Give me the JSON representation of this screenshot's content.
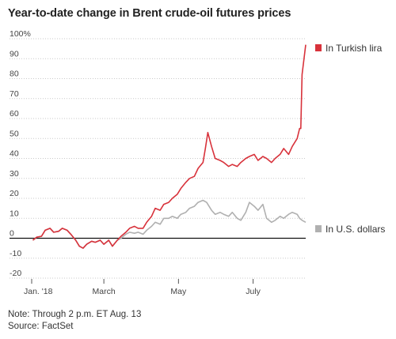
{
  "chart_data": {
    "type": "line",
    "title": "Year-to-date change in Brent crude-oil futures prices",
    "ylim": [
      -20,
      100
    ],
    "yticks": [
      {
        "value": 100,
        "label": "100%"
      },
      {
        "value": 90,
        "label": "90"
      },
      {
        "value": 80,
        "label": "80"
      },
      {
        "value": 70,
        "label": "70"
      },
      {
        "value": 60,
        "label": "60"
      },
      {
        "value": 50,
        "label": "50"
      },
      {
        "value": 40,
        "label": "40"
      },
      {
        "value": 30,
        "label": "30"
      },
      {
        "value": 20,
        "label": "20"
      },
      {
        "value": 10,
        "label": "10"
      },
      {
        "value": 0,
        "label": "0"
      },
      {
        "value": -10,
        "label": "-10"
      },
      {
        "value": -20,
        "label": "-20"
      }
    ],
    "xlim": [
      "2018-01-01",
      "2018-08-13"
    ],
    "xticks": [
      {
        "date": "2018-01-01",
        "label": "Jan. '18"
      },
      {
        "date": "2018-03-01",
        "label": "March"
      },
      {
        "date": "2018-05-01",
        "label": "May"
      },
      {
        "date": "2018-07-01",
        "label": "July"
      }
    ],
    "legend_placement": "right, beside line ends",
    "series": [
      {
        "name": "In Turkish lira",
        "color": "#d8323b",
        "points": [
          [
            "2018-01-02",
            -1
          ],
          [
            "2018-01-05",
            0.5
          ],
          [
            "2018-01-09",
            1
          ],
          [
            "2018-01-12",
            4
          ],
          [
            "2018-01-16",
            5
          ],
          [
            "2018-01-19",
            3
          ],
          [
            "2018-01-23",
            3.5
          ],
          [
            "2018-01-26",
            5
          ],
          [
            "2018-01-30",
            4
          ],
          [
            "2018-02-02",
            2
          ],
          [
            "2018-02-06",
            -1
          ],
          [
            "2018-02-09",
            -4
          ],
          [
            "2018-02-12",
            -5
          ],
          [
            "2018-02-15",
            -3
          ],
          [
            "2018-02-19",
            -1.5
          ],
          [
            "2018-02-22",
            -2
          ],
          [
            "2018-02-26",
            -1
          ],
          [
            "2018-03-01",
            -3
          ],
          [
            "2018-03-05",
            -1
          ],
          [
            "2018-03-08",
            -4
          ],
          [
            "2018-03-12",
            -1
          ],
          [
            "2018-03-15",
            1
          ],
          [
            "2018-03-19",
            3
          ],
          [
            "2018-03-22",
            5
          ],
          [
            "2018-03-26",
            6
          ],
          [
            "2018-03-29",
            5
          ],
          [
            "2018-04-02",
            5
          ],
          [
            "2018-04-05",
            8
          ],
          [
            "2018-04-09",
            11
          ],
          [
            "2018-04-12",
            15
          ],
          [
            "2018-04-16",
            14
          ],
          [
            "2018-04-19",
            17
          ],
          [
            "2018-04-23",
            18
          ],
          [
            "2018-04-26",
            20
          ],
          [
            "2018-04-30",
            22
          ],
          [
            "2018-05-03",
            25
          ],
          [
            "2018-05-07",
            28
          ],
          [
            "2018-05-10",
            30
          ],
          [
            "2018-05-14",
            31
          ],
          [
            "2018-05-17",
            35
          ],
          [
            "2018-05-21",
            38
          ],
          [
            "2018-05-23",
            45
          ],
          [
            "2018-05-25",
            53
          ],
          [
            "2018-05-28",
            46
          ],
          [
            "2018-05-31",
            40
          ],
          [
            "2018-06-04",
            39
          ],
          [
            "2018-06-07",
            38
          ],
          [
            "2018-06-11",
            36
          ],
          [
            "2018-06-14",
            37
          ],
          [
            "2018-06-18",
            36
          ],
          [
            "2018-06-21",
            38
          ],
          [
            "2018-06-25",
            40
          ],
          [
            "2018-06-28",
            41
          ],
          [
            "2018-07-02",
            42
          ],
          [
            "2018-07-05",
            39
          ],
          [
            "2018-07-09",
            41
          ],
          [
            "2018-07-12",
            40
          ],
          [
            "2018-07-16",
            38
          ],
          [
            "2018-07-19",
            40
          ],
          [
            "2018-07-23",
            42
          ],
          [
            "2018-07-26",
            45
          ],
          [
            "2018-07-30",
            42
          ],
          [
            "2018-08-02",
            46
          ],
          [
            "2018-08-06",
            50
          ],
          [
            "2018-08-08",
            55
          ],
          [
            "2018-08-09",
            55
          ],
          [
            "2018-08-10",
            82
          ],
          [
            "2018-08-13",
            97
          ]
        ]
      },
      {
        "name": "In U.S. dollars",
        "color": "#b0b0b0",
        "points": [
          [
            "2018-01-02",
            -1
          ],
          [
            "2018-01-05",
            0.5
          ],
          [
            "2018-01-09",
            1
          ],
          [
            "2018-01-12",
            4
          ],
          [
            "2018-01-16",
            5
          ],
          [
            "2018-01-19",
            3
          ],
          [
            "2018-01-23",
            3.5
          ],
          [
            "2018-01-26",
            5
          ],
          [
            "2018-01-30",
            4
          ],
          [
            "2018-02-02",
            2
          ],
          [
            "2018-02-06",
            -1
          ],
          [
            "2018-02-09",
            -4
          ],
          [
            "2018-02-12",
            -5
          ],
          [
            "2018-02-15",
            -3
          ],
          [
            "2018-02-19",
            -1.5
          ],
          [
            "2018-02-22",
            -2
          ],
          [
            "2018-02-26",
            -1
          ],
          [
            "2018-03-01",
            -3
          ],
          [
            "2018-03-05",
            -1
          ],
          [
            "2018-03-08",
            -4
          ],
          [
            "2018-03-12",
            -1
          ],
          [
            "2018-03-15",
            0
          ],
          [
            "2018-03-19",
            2
          ],
          [
            "2018-03-22",
            3
          ],
          [
            "2018-03-26",
            2.5
          ],
          [
            "2018-03-29",
            3
          ],
          [
            "2018-04-02",
            2
          ],
          [
            "2018-04-05",
            4
          ],
          [
            "2018-04-09",
            6
          ],
          [
            "2018-04-12",
            8
          ],
          [
            "2018-04-16",
            7
          ],
          [
            "2018-04-19",
            10
          ],
          [
            "2018-04-23",
            10
          ],
          [
            "2018-04-26",
            11
          ],
          [
            "2018-04-30",
            10
          ],
          [
            "2018-05-03",
            12
          ],
          [
            "2018-05-07",
            13
          ],
          [
            "2018-05-10",
            15
          ],
          [
            "2018-05-14",
            16
          ],
          [
            "2018-05-17",
            18
          ],
          [
            "2018-05-21",
            19
          ],
          [
            "2018-05-24",
            18
          ],
          [
            "2018-05-28",
            14
          ],
          [
            "2018-05-31",
            12
          ],
          [
            "2018-06-04",
            13
          ],
          [
            "2018-06-07",
            12
          ],
          [
            "2018-06-11",
            11
          ],
          [
            "2018-06-14",
            13
          ],
          [
            "2018-06-18",
            10
          ],
          [
            "2018-06-21",
            9
          ],
          [
            "2018-06-25",
            13
          ],
          [
            "2018-06-28",
            18
          ],
          [
            "2018-07-02",
            16
          ],
          [
            "2018-07-05",
            14
          ],
          [
            "2018-07-09",
            17
          ],
          [
            "2018-07-12",
            10
          ],
          [
            "2018-07-16",
            8
          ],
          [
            "2018-07-19",
            9
          ],
          [
            "2018-07-23",
            11
          ],
          [
            "2018-07-26",
            10
          ],
          [
            "2018-07-30",
            12
          ],
          [
            "2018-08-02",
            13
          ],
          [
            "2018-08-06",
            12
          ],
          [
            "2018-08-08",
            10
          ],
          [
            "2018-08-10",
            9
          ],
          [
            "2018-08-13",
            8
          ]
        ]
      }
    ]
  },
  "footer": {
    "note": "Note: Through 2 p.m. ET Aug. 13",
    "source": "Source: FactSet"
  }
}
